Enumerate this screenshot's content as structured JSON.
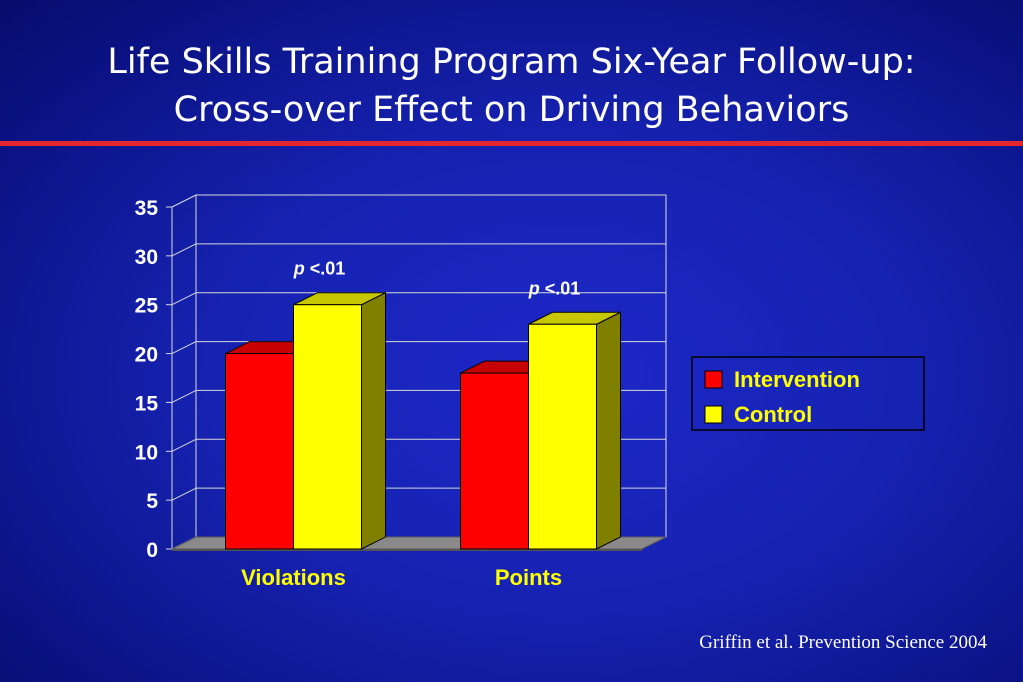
{
  "title": {
    "line1": "Life Skills Training Program Six-Year Follow-up:",
    "line2": "Cross-over Effect on Driving Behaviors"
  },
  "citation": "Griffin et al. Prevention Science 2004",
  "colors": {
    "accent_rule": "#e4262f",
    "intervention": "#ff0000",
    "control": "#ffff00"
  },
  "chart_data": {
    "type": "bar",
    "style": "3d-clustered-column",
    "categories": [
      "Violations",
      "Points"
    ],
    "series": [
      {
        "name": "Intervention",
        "values": [
          20,
          18
        ],
        "color": "#ff0000"
      },
      {
        "name": "Control",
        "values": [
          25,
          23
        ],
        "color": "#ffff00"
      }
    ],
    "yticks": [
      "0",
      "5",
      "10",
      "15",
      "20",
      "25",
      "30",
      "35"
    ],
    "ylim": [
      0,
      35
    ],
    "grid": true,
    "legend_position": "right",
    "annotations": [
      {
        "category": "Violations",
        "p_label": "p",
        "rest": " <.01"
      },
      {
        "category": "Points",
        "p_label": "p",
        "rest": " <.01"
      }
    ]
  }
}
